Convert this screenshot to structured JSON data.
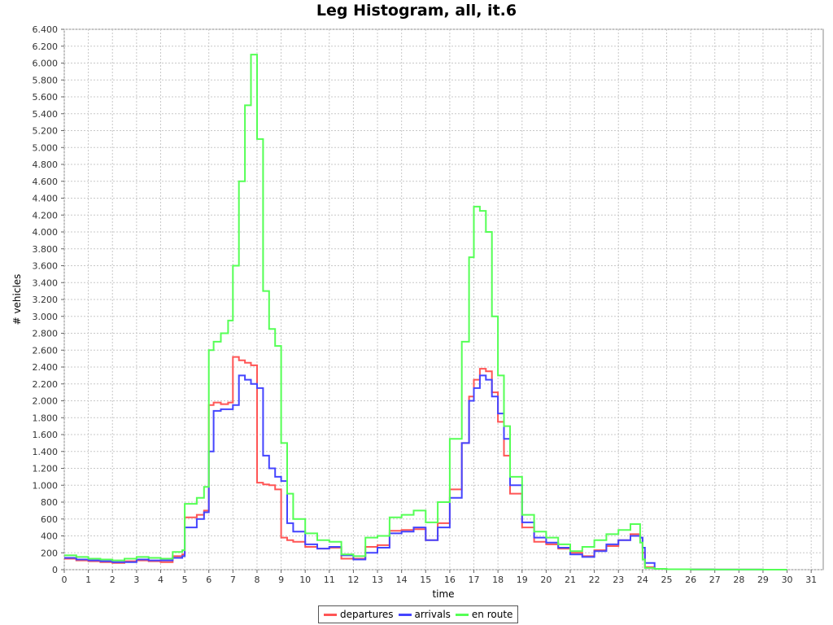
{
  "chart_data": {
    "type": "line",
    "title": "Leg Histogram, all, it.6",
    "xlabel": "time",
    "ylabel": "# vehicles",
    "xlim": [
      0,
      31.5
    ],
    "ylim": [
      0,
      6400
    ],
    "x_ticks": [
      0,
      1,
      2,
      3,
      4,
      5,
      6,
      7,
      8,
      9,
      10,
      11,
      12,
      13,
      14,
      15,
      16,
      17,
      18,
      19,
      20,
      21,
      22,
      23,
      24,
      25,
      26,
      27,
      28,
      29,
      30,
      31
    ],
    "y_ticks": [
      0,
      200,
      400,
      600,
      800,
      1000,
      1200,
      1400,
      1600,
      1800,
      2000,
      2200,
      2400,
      2600,
      2800,
      3000,
      3200,
      3400,
      3600,
      3800,
      4000,
      4200,
      4400,
      4600,
      4800,
      5000,
      5200,
      5400,
      5600,
      5800,
      6000,
      6200,
      6400
    ],
    "y_tick_labels": [
      "0",
      "200",
      "400",
      "600",
      "800",
      "1.000",
      "1.200",
      "1.400",
      "1.600",
      "1.800",
      "2.000",
      "2.200",
      "2.400",
      "2.600",
      "2.800",
      "3.000",
      "3.200",
      "3.400",
      "3.600",
      "3.800",
      "4.000",
      "4.200",
      "4.400",
      "4.600",
      "4.800",
      "5.000",
      "5.200",
      "5.400",
      "5.600",
      "5.800",
      "6.000",
      "6.200",
      "6.400"
    ],
    "grid": true,
    "legend_position": "bottom",
    "x": [
      0,
      0.5,
      1,
      1.5,
      2,
      2.5,
      3,
      3.5,
      4,
      4.5,
      4.9,
      5,
      5.5,
      5.8,
      6,
      6.2,
      6.5,
      6.8,
      7,
      7.25,
      7.5,
      7.75,
      8,
      8.25,
      8.5,
      8.75,
      9,
      9.25,
      9.5,
      10,
      10.5,
      11,
      11.5,
      12,
      12.5,
      13,
      13.5,
      14,
      14.5,
      15,
      15.5,
      16,
      16.5,
      16.8,
      17,
      17.25,
      17.5,
      17.75,
      18,
      18.25,
      18.5,
      19,
      19.5,
      20,
      20.5,
      21,
      21.5,
      22,
      22.5,
      23,
      23.5,
      23.9,
      24,
      24.1,
      24.5,
      25,
      26,
      27,
      28,
      29,
      30
    ],
    "series": [
      {
        "name": "departures",
        "color": "#ff5555",
        "values": [
          130,
          110,
          100,
          90,
          80,
          100,
          110,
          100,
          90,
          160,
          180,
          620,
          650,
          700,
          1950,
          1980,
          1960,
          1980,
          2520,
          2480,
          2450,
          2420,
          1030,
          1010,
          1000,
          950,
          380,
          350,
          330,
          270,
          250,
          260,
          130,
          130,
          270,
          290,
          460,
          470,
          480,
          350,
          550,
          950,
          1500,
          2050,
          2250,
          2380,
          2350,
          2100,
          1750,
          1350,
          900,
          500,
          330,
          300,
          250,
          200,
          160,
          230,
          280,
          350,
          420,
          380,
          200,
          30,
          10,
          5,
          2,
          1,
          1,
          0,
          0
        ]
      },
      {
        "name": "arrivals",
        "color": "#4444ff",
        "values": [
          140,
          120,
          110,
          100,
          90,
          90,
          120,
          110,
          110,
          140,
          160,
          500,
          600,
          680,
          1400,
          1880,
          1900,
          1900,
          1950,
          2300,
          2250,
          2200,
          2150,
          1350,
          1200,
          1100,
          1050,
          550,
          450,
          300,
          250,
          270,
          170,
          120,
          200,
          260,
          430,
          450,
          500,
          350,
          500,
          850,
          1500,
          2000,
          2150,
          2300,
          2250,
          2050,
          1850,
          1550,
          1000,
          560,
          380,
          320,
          260,
          180,
          150,
          220,
          300,
          350,
          400,
          380,
          260,
          80,
          10,
          5,
          2,
          1,
          1,
          0,
          0
        ]
      },
      {
        "name": "en route",
        "color": "#55ff55",
        "values": [
          170,
          150,
          130,
          120,
          110,
          130,
          150,
          140,
          130,
          210,
          230,
          780,
          850,
          980,
          2600,
          2700,
          2800,
          2950,
          3600,
          4600,
          5500,
          6100,
          5100,
          3300,
          2850,
          2650,
          1500,
          900,
          600,
          430,
          350,
          330,
          180,
          160,
          380,
          400,
          620,
          650,
          700,
          560,
          800,
          1550,
          2700,
          3700,
          4300,
          4250,
          4000,
          3000,
          2300,
          1700,
          1100,
          650,
          450,
          380,
          300,
          220,
          270,
          350,
          420,
          470,
          540,
          320,
          120,
          20,
          10,
          5,
          2,
          1,
          1,
          0,
          0
        ]
      }
    ]
  }
}
